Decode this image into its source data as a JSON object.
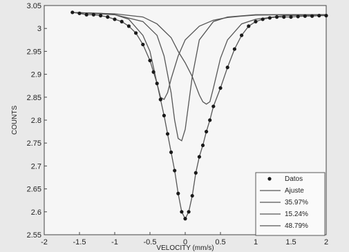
{
  "chart_data": {
    "type": "scatter",
    "title": "",
    "xlabel": "VELOCITY (mm/s)",
    "ylabel": "COUNTS",
    "xlim": [
      -2,
      2
    ],
    "ylim": [
      2.55,
      3.05
    ],
    "xticks": [
      -2,
      -1.5,
      -1,
      -0.5,
      0,
      0.5,
      1,
      1.5,
      2
    ],
    "yticks": [
      2.55,
      2.6,
      2.65,
      2.7,
      2.75,
      2.8,
      2.85,
      2.9,
      2.95,
      3,
      3.05
    ],
    "xtick_labels": [
      "-2",
      "-1.5",
      "-1",
      "-0.5",
      "0",
      "0.5",
      "1",
      "1.5",
      "2"
    ],
    "ytick_labels": [
      "2.55",
      "2.6",
      "2.65",
      "2.7",
      "2.75",
      "2.8",
      "2.85",
      "2.9",
      "2.95",
      "3",
      "3.05"
    ],
    "grid": false,
    "legend_position": "bottom-right",
    "series": [
      {
        "name": "Datos",
        "kind": "points",
        "x": [
          -1.6,
          -1.5,
          -1.4,
          -1.3,
          -1.2,
          -1.1,
          -1.0,
          -0.9,
          -0.8,
          -0.7,
          -0.6,
          -0.5,
          -0.45,
          -0.4,
          -0.35,
          -0.3,
          -0.25,
          -0.2,
          -0.15,
          -0.1,
          -0.05,
          0.0,
          0.05,
          0.1,
          0.15,
          0.2,
          0.25,
          0.3,
          0.35,
          0.4,
          0.5,
          0.6,
          0.7,
          0.8,
          0.9,
          1.0,
          1.1,
          1.2,
          1.3,
          1.4,
          1.5,
          1.6,
          1.7,
          1.8,
          1.9,
          2.0
        ],
        "y": [
          3.035,
          3.033,
          3.03,
          3.03,
          3.028,
          3.025,
          3.02,
          3.015,
          3.005,
          2.99,
          2.965,
          2.93,
          2.905,
          2.88,
          2.845,
          2.81,
          2.77,
          2.73,
          2.69,
          2.64,
          2.6,
          2.585,
          2.6,
          2.635,
          2.685,
          2.72,
          2.745,
          2.775,
          2.8,
          2.83,
          2.87,
          2.915,
          2.955,
          2.985,
          3.005,
          3.015,
          3.02,
          3.023,
          3.025,
          3.025,
          3.025,
          3.026,
          3.027,
          3.027,
          3.028,
          3.028
        ]
      },
      {
        "name": "Ajuste",
        "kind": "line",
        "x": [
          -1.6,
          -1.5,
          -1.4,
          -1.3,
          -1.2,
          -1.1,
          -1.0,
          -0.9,
          -0.8,
          -0.7,
          -0.6,
          -0.5,
          -0.45,
          -0.4,
          -0.35,
          -0.3,
          -0.25,
          -0.2,
          -0.15,
          -0.1,
          -0.05,
          0.0,
          0.05,
          0.1,
          0.15,
          0.2,
          0.25,
          0.3,
          0.35,
          0.4,
          0.5,
          0.6,
          0.7,
          0.8,
          0.9,
          1.0,
          1.1,
          1.2,
          1.3,
          1.4,
          1.5,
          1.6,
          1.7,
          1.8,
          1.9,
          2.0
        ],
        "y": [
          3.035,
          3.033,
          3.03,
          3.03,
          3.028,
          3.025,
          3.02,
          3.015,
          3.005,
          2.99,
          2.965,
          2.93,
          2.905,
          2.88,
          2.845,
          2.81,
          2.77,
          2.73,
          2.69,
          2.64,
          2.6,
          2.585,
          2.6,
          2.635,
          2.685,
          2.72,
          2.745,
          2.775,
          2.8,
          2.83,
          2.87,
          2.915,
          2.955,
          2.985,
          3.005,
          3.015,
          3.02,
          3.023,
          3.025,
          3.025,
          3.025,
          3.026,
          3.027,
          3.027,
          3.028,
          3.028
        ]
      },
      {
        "name": "35.97%",
        "kind": "line",
        "x": [
          -1.6,
          -1.2,
          -1.0,
          -0.8,
          -0.6,
          -0.5,
          -0.45,
          -0.4,
          -0.35,
          -0.3,
          -0.25,
          -0.2,
          -0.1,
          0.0,
          0.2,
          0.4,
          0.6,
          0.8,
          1.0,
          1.4,
          2.0
        ],
        "y": [
          3.035,
          3.033,
          3.03,
          3.02,
          2.985,
          2.95,
          2.915,
          2.88,
          2.85,
          2.845,
          2.86,
          2.89,
          2.94,
          2.975,
          3.005,
          3.018,
          3.024,
          3.027,
          3.029,
          3.03,
          3.03
        ]
      },
      {
        "name": "15.24%",
        "kind": "line",
        "x": [
          -1.6,
          -1.0,
          -0.6,
          -0.4,
          -0.3,
          -0.2,
          -0.15,
          -0.1,
          -0.05,
          0.0,
          0.1,
          0.2,
          0.4,
          0.6,
          1.0,
          2.0
        ],
        "y": [
          3.035,
          3.03,
          3.015,
          2.985,
          2.94,
          2.86,
          2.8,
          2.76,
          2.755,
          2.78,
          2.895,
          2.975,
          3.015,
          3.025,
          3.03,
          3.03
        ]
      },
      {
        "name": "48.79%",
        "kind": "line",
        "x": [
          -1.6,
          -1.0,
          -0.6,
          -0.4,
          -0.2,
          -0.1,
          0.0,
          0.1,
          0.2,
          0.25,
          0.3,
          0.35,
          0.4,
          0.5,
          0.6,
          0.8,
          1.0,
          1.4,
          2.0
        ],
        "y": [
          3.035,
          3.032,
          3.025,
          3.01,
          2.98,
          2.95,
          2.925,
          2.895,
          2.855,
          2.84,
          2.835,
          2.84,
          2.87,
          2.935,
          2.975,
          3.01,
          3.02,
          3.028,
          3.03
        ]
      }
    ],
    "colors": {
      "points": "#1a1a1a",
      "lines": "#555555",
      "axes": "#444444",
      "background": "#e9e9e9"
    }
  }
}
